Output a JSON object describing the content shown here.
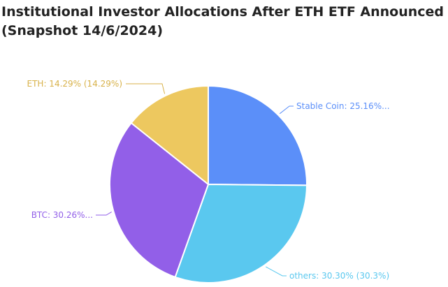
{
  "chart_data": {
    "type": "pie",
    "title": "Institutional Investor Allocations After ETH ETF Announced",
    "subtitle": "(Snapshot 14/6/2024)",
    "start_angle_deg": 0,
    "direction": "clockwise",
    "slices": [
      {
        "value": 25.16,
        "label": "Stable Coin: 25.16%...",
        "color": "#5b8ff9",
        "label_color": "#5b8ff9"
      },
      {
        "value": 30.3,
        "label": "others: 30.30% (30.3%)",
        "color": "#5ac8ef",
        "label_color": "#5ac8ef"
      },
      {
        "value": 30.26,
        "label": "BTC: 30.26%...",
        "color": "#925fe8",
        "label_color": "#925fe8"
      },
      {
        "value": 14.29,
        "label": "ETH: 14.29% (14.29%)",
        "color": "#edc85f",
        "label_color": "#d8b24a"
      }
    ]
  }
}
